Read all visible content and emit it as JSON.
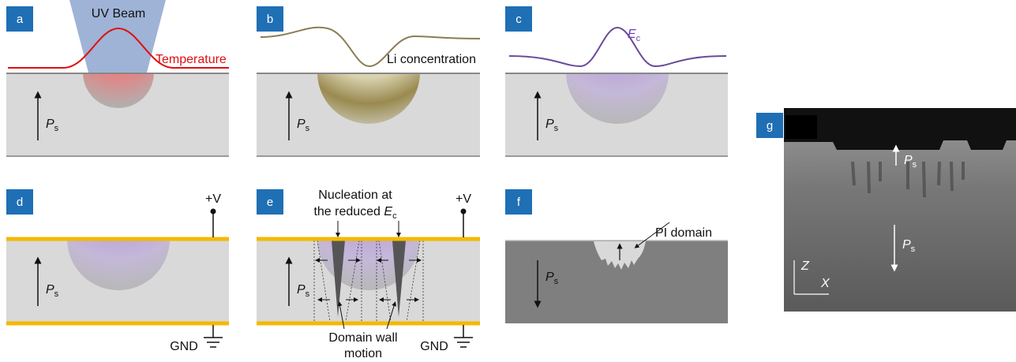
{
  "panel_labels": [
    "a",
    "b",
    "c",
    "d",
    "e",
    "f",
    "g"
  ],
  "a": {
    "beam": "UV Beam",
    "curve": "Temperature"
  },
  "b": {
    "curve": "Li concentration"
  },
  "c": {
    "curve": {
      "main": "E",
      "sub": "c"
    }
  },
  "polarization": {
    "main": "P",
    "sub": "s"
  },
  "electrodes": {
    "top": "+V",
    "bottom": "GND"
  },
  "e": {
    "nucleation": {
      "line1": "Nucleation at",
      "line2": "the reduced ",
      "main": "E",
      "sub": "c"
    },
    "wall": [
      "Domain wall",
      "motion"
    ]
  },
  "f": {
    "domain": "PI domain"
  },
  "g": {
    "axes": [
      "Z",
      "X"
    ]
  }
}
